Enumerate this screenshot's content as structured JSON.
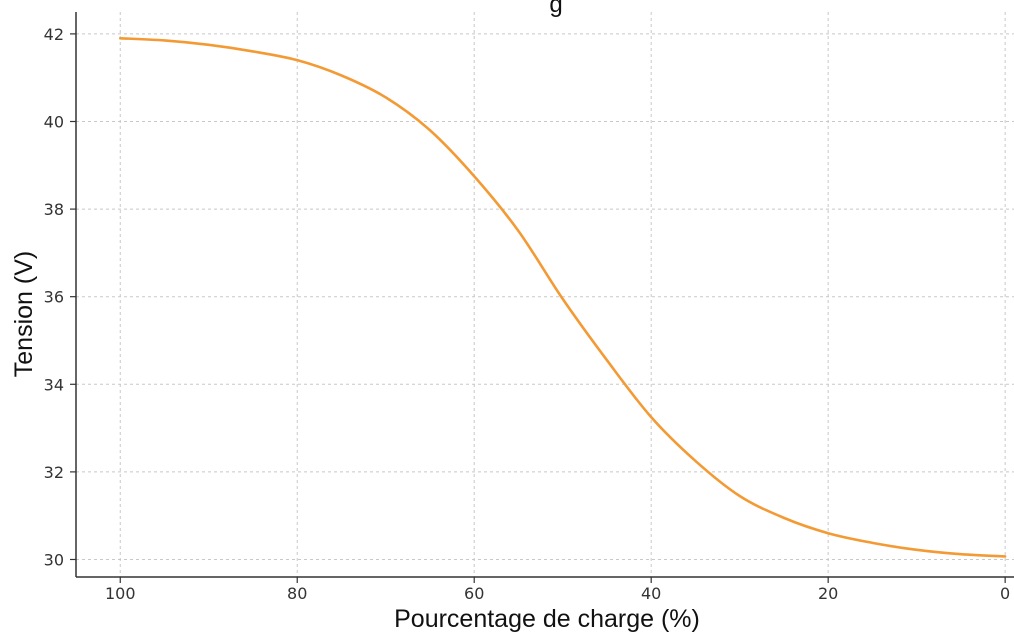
{
  "chart_data": {
    "type": "line",
    "title_fragment": "g",
    "xlabel": "Pourcentage de charge (%)",
    "ylabel": "Tension (V)",
    "xlim": [
      105,
      -1
    ],
    "ylim": [
      29.6,
      42.5
    ],
    "x_reversed": true,
    "grid": true,
    "x_ticks": [
      100,
      80,
      60,
      40,
      20,
      0
    ],
    "x_tick_labels": [
      "100",
      "80",
      "60",
      "40",
      "20",
      "0"
    ],
    "y_ticks": [
      30,
      32,
      34,
      36,
      38,
      40,
      42
    ],
    "y_tick_labels": [
      "30",
      "32",
      "34",
      "36",
      "38",
      "40",
      "42"
    ],
    "series": [
      {
        "color": "#f39a35",
        "x": [
          100,
          95,
          90,
          85,
          80,
          75,
          70,
          65,
          60,
          55,
          50,
          45,
          40,
          35,
          30,
          25,
          20,
          15,
          10,
          5,
          0
        ],
        "y": [
          41.9,
          41.85,
          41.75,
          41.6,
          41.4,
          41.05,
          40.55,
          39.8,
          38.75,
          37.5,
          35.95,
          34.55,
          33.25,
          32.25,
          31.45,
          30.95,
          30.6,
          30.38,
          30.22,
          30.12,
          30.07
        ]
      }
    ]
  }
}
